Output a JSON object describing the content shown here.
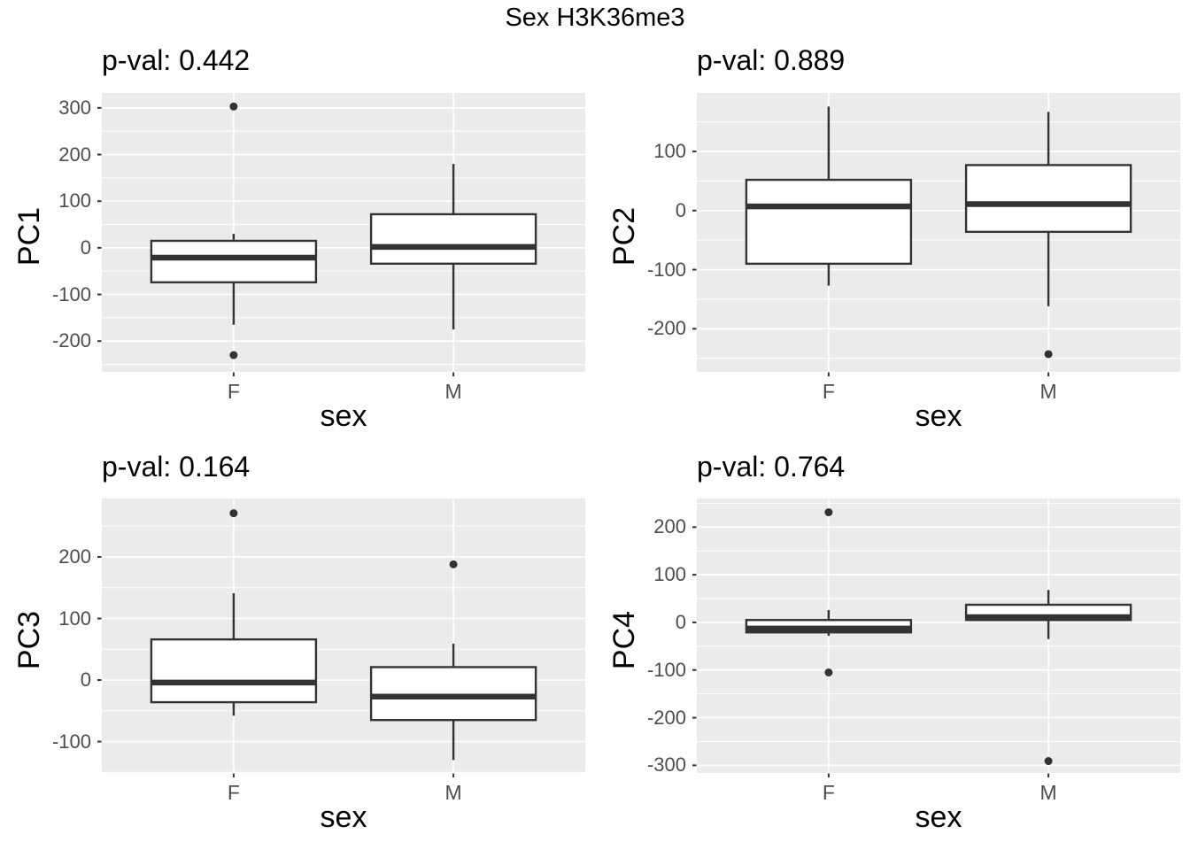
{
  "chart_data": {
    "type": "boxplot",
    "title": "Sex H3K36me3",
    "xlabel": "sex",
    "categories": [
      "F",
      "M"
    ],
    "grid": "on",
    "legend": "none",
    "colors": {
      "panel_background": "#EBEBEB",
      "gridline": "#FFFFFF",
      "box_outline": "#333333",
      "box_fill": "#FFFFFF",
      "tick_label": "#4D4D4D",
      "tick_mark": "#333333",
      "text": "#000000"
    },
    "panels": [
      {
        "ylabel": "PC1",
        "subtitle": "p-val: 0.442",
        "p_value": 0.442,
        "yticks": [
          300,
          200,
          100,
          0,
          -100,
          -200
        ],
        "ylim": [
          -266,
          332
        ],
        "boxes": [
          {
            "category": "F",
            "whisker_low": -165,
            "q1": -74,
            "median": -21,
            "q3": 15,
            "whisker_high": 30,
            "outliers": [
              303,
              -230
            ]
          },
          {
            "category": "M",
            "whisker_low": -175,
            "q1": -34,
            "median": 2,
            "q3": 72,
            "whisker_high": 180,
            "outliers": []
          }
        ]
      },
      {
        "ylabel": "PC2",
        "subtitle": "p-val: 0.889",
        "p_value": 0.889,
        "yticks": [
          100,
          0,
          -100,
          -200
        ],
        "ylim": [
          -273,
          199
        ],
        "boxes": [
          {
            "category": "F",
            "whisker_low": -127,
            "q1": -90,
            "median": 7,
            "q3": 52,
            "whisker_high": 176,
            "outliers": []
          },
          {
            "category": "M",
            "whisker_low": -162,
            "q1": -36,
            "median": 11,
            "q3": 77,
            "whisker_high": 167,
            "outliers": [
              -243
            ]
          }
        ]
      },
      {
        "ylabel": "PC3",
        "subtitle": "p-val: 0.164",
        "p_value": 0.164,
        "yticks": [
          200,
          100,
          0,
          -100
        ],
        "ylim": [
          -151,
          295
        ],
        "boxes": [
          {
            "category": "F",
            "whisker_low": -58,
            "q1": -36,
            "median": -4,
            "q3": 66,
            "whisker_high": 141,
            "outliers": [
              271
            ]
          },
          {
            "category": "M",
            "whisker_low": -130,
            "q1": -65,
            "median": -27,
            "q3": 21,
            "whisker_high": 59,
            "outliers": [
              188
            ]
          }
        ]
      },
      {
        "ylabel": "PC4",
        "subtitle": "p-val: 0.764",
        "p_value": 0.764,
        "yticks": [
          200,
          100,
          0,
          -100,
          -200,
          -300
        ],
        "ylim": [
          -316,
          260
        ],
        "boxes": [
          {
            "category": "F",
            "whisker_low": -28,
            "q1": -21,
            "median": -13,
            "q3": 5,
            "whisker_high": 26,
            "outliers": [
              231,
              -105
            ]
          },
          {
            "category": "M",
            "whisker_low": -35,
            "q1": 5,
            "median": 11,
            "q3": 37,
            "whisker_high": 68,
            "outliers": [
              -291
            ]
          }
        ]
      }
    ]
  }
}
